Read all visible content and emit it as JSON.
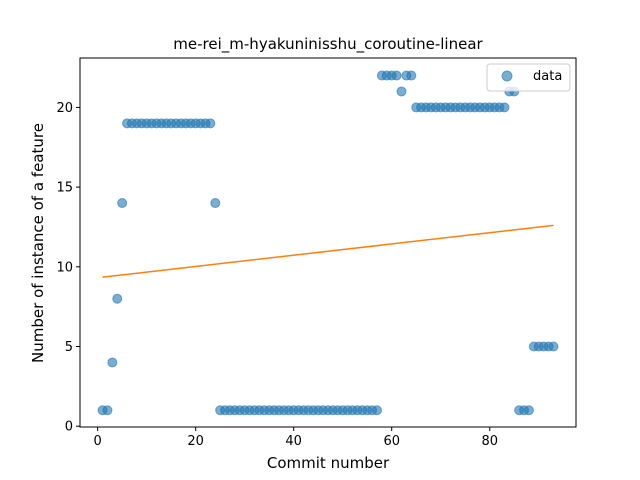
{
  "chart_data": {
    "type": "scatter",
    "title": "me-rei_m-hyakuninisshu_coroutine-linear",
    "xlabel": "Commit number",
    "ylabel": "Number of instance of a feature",
    "xlim": [
      -3.6,
      97.6
    ],
    "ylim": [
      -0.05,
      23.1
    ],
    "xticks": [
      0,
      20,
      40,
      60,
      80
    ],
    "yticks": [
      0,
      5,
      10,
      15,
      20
    ],
    "grid": false,
    "legend": {
      "placement": "top-right",
      "entries": [
        "data"
      ]
    },
    "colors": {
      "data": "#1f77b4",
      "fit": "#ff7f0e"
    },
    "series": [
      {
        "name": "data",
        "kind": "scatter",
        "points": [
          [
            1,
            1
          ],
          [
            2,
            1
          ],
          [
            3,
            4
          ],
          [
            4,
            8
          ],
          [
            5,
            14
          ],
          [
            6,
            19
          ],
          [
            7,
            19
          ],
          [
            8,
            19
          ],
          [
            9,
            19
          ],
          [
            10,
            19
          ],
          [
            11,
            19
          ],
          [
            12,
            19
          ],
          [
            13,
            19
          ],
          [
            14,
            19
          ],
          [
            15,
            19
          ],
          [
            16,
            19
          ],
          [
            17,
            19
          ],
          [
            18,
            19
          ],
          [
            19,
            19
          ],
          [
            20,
            19
          ],
          [
            21,
            19
          ],
          [
            22,
            19
          ],
          [
            23,
            19
          ],
          [
            24,
            14
          ],
          [
            25,
            1
          ],
          [
            26,
            1
          ],
          [
            27,
            1
          ],
          [
            28,
            1
          ],
          [
            29,
            1
          ],
          [
            30,
            1
          ],
          [
            31,
            1
          ],
          [
            32,
            1
          ],
          [
            33,
            1
          ],
          [
            34,
            1
          ],
          [
            35,
            1
          ],
          [
            36,
            1
          ],
          [
            37,
            1
          ],
          [
            38,
            1
          ],
          [
            39,
            1
          ],
          [
            40,
            1
          ],
          [
            41,
            1
          ],
          [
            42,
            1
          ],
          [
            43,
            1
          ],
          [
            44,
            1
          ],
          [
            45,
            1
          ],
          [
            46,
            1
          ],
          [
            47,
            1
          ],
          [
            48,
            1
          ],
          [
            49,
            1
          ],
          [
            50,
            1
          ],
          [
            51,
            1
          ],
          [
            52,
            1
          ],
          [
            53,
            1
          ],
          [
            54,
            1
          ],
          [
            55,
            1
          ],
          [
            56,
            1
          ],
          [
            57,
            1
          ],
          [
            58,
            22
          ],
          [
            59,
            22
          ],
          [
            60,
            22
          ],
          [
            61,
            22
          ],
          [
            62,
            21
          ],
          [
            63,
            22
          ],
          [
            64,
            22
          ],
          [
            65,
            20
          ],
          [
            66,
            20
          ],
          [
            67,
            20
          ],
          [
            68,
            20
          ],
          [
            69,
            20
          ],
          [
            70,
            20
          ],
          [
            71,
            20
          ],
          [
            72,
            20
          ],
          [
            73,
            20
          ],
          [
            74,
            20
          ],
          [
            75,
            20
          ],
          [
            76,
            20
          ],
          [
            77,
            20
          ],
          [
            78,
            20
          ],
          [
            79,
            20
          ],
          [
            80,
            20
          ],
          [
            81,
            20
          ],
          [
            82,
            20
          ],
          [
            83,
            20
          ],
          [
            84,
            21
          ],
          [
            85,
            21
          ],
          [
            86,
            1
          ],
          [
            87,
            1
          ],
          [
            88,
            1
          ],
          [
            89,
            5
          ],
          [
            90,
            5
          ],
          [
            91,
            5
          ],
          [
            92,
            5
          ],
          [
            93,
            5
          ]
        ]
      },
      {
        "kind": "line",
        "points": [
          [
            1,
            9.35
          ],
          [
            93,
            12.6
          ]
        ]
      }
    ]
  }
}
